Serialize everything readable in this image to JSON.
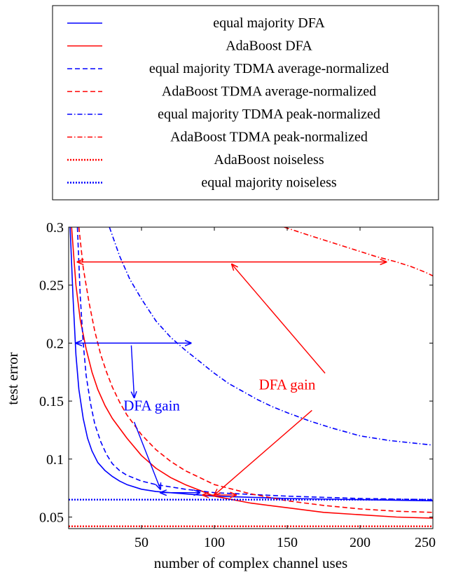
{
  "chart_data": {
    "type": "line",
    "title": "",
    "xlabel": "number of complex channel uses",
    "ylabel": "test error",
    "xlim": [
      0,
      250
    ],
    "ylim": [
      0.04,
      0.3
    ],
    "xticks": [
      50,
      100,
      150,
      200,
      250
    ],
    "yticks": [
      0.05,
      0.1,
      0.15,
      0.2,
      0.25,
      0.3
    ],
    "xtick_labels": [
      "50",
      "100",
      "150",
      "200",
      "250"
    ],
    "ytick_labels": [
      "0.05",
      "0.1",
      "0.15",
      "0.2",
      "0.25",
      "0.3"
    ],
    "grid": false,
    "legend_position": "above plot",
    "series": [
      {
        "name": "equal majority DFA",
        "color": "#0000ff",
        "style": "solid",
        "points": [
          [
            1,
            0.3
          ],
          [
            3,
            0.24
          ],
          [
            5,
            0.19
          ],
          [
            7,
            0.16
          ],
          [
            10,
            0.135
          ],
          [
            13,
            0.118
          ],
          [
            16,
            0.107
          ],
          [
            20,
            0.097
          ],
          [
            25,
            0.09
          ],
          [
            30,
            0.085
          ],
          [
            35,
            0.081
          ],
          [
            40,
            0.078
          ],
          [
            50,
            0.074
          ],
          [
            60,
            0.072
          ],
          [
            80,
            0.07
          ],
          [
            100,
            0.068
          ],
          [
            150,
            0.066
          ],
          [
            200,
            0.065
          ],
          [
            250,
            0.064
          ]
        ]
      },
      {
        "name": "AdaBoost DFA",
        "color": "#ff0000",
        "style": "solid",
        "points": [
          [
            2,
            0.3
          ],
          [
            5,
            0.25
          ],
          [
            8,
            0.22
          ],
          [
            12,
            0.195
          ],
          [
            16,
            0.175
          ],
          [
            20,
            0.16
          ],
          [
            25,
            0.146
          ],
          [
            30,
            0.135
          ],
          [
            40,
            0.118
          ],
          [
            50,
            0.103
          ],
          [
            60,
            0.092
          ],
          [
            70,
            0.084
          ],
          [
            80,
            0.078
          ],
          [
            90,
            0.073
          ],
          [
            100,
            0.068
          ],
          [
            125,
            0.062
          ],
          [
            150,
            0.058
          ],
          [
            175,
            0.054
          ],
          [
            200,
            0.052
          ],
          [
            225,
            0.05
          ],
          [
            250,
            0.049
          ]
        ]
      },
      {
        "name": "equal majority TDMA average-normalized",
        "color": "#0000ff",
        "style": "dashed",
        "points": [
          [
            6,
            0.3
          ],
          [
            8,
            0.24
          ],
          [
            10,
            0.2
          ],
          [
            12,
            0.172
          ],
          [
            15,
            0.148
          ],
          [
            18,
            0.13
          ],
          [
            22,
            0.115
          ],
          [
            26,
            0.104
          ],
          [
            30,
            0.096
          ],
          [
            35,
            0.09
          ],
          [
            40,
            0.086
          ],
          [
            50,
            0.081
          ],
          [
            60,
            0.078
          ],
          [
            80,
            0.074
          ],
          [
            100,
            0.071
          ],
          [
            150,
            0.068
          ],
          [
            200,
            0.066
          ],
          [
            250,
            0.065
          ]
        ]
      },
      {
        "name": "AdaBoost TDMA average-normalized",
        "color": "#ff0000",
        "style": "dashed",
        "points": [
          [
            7,
            0.3
          ],
          [
            10,
            0.265
          ],
          [
            14,
            0.235
          ],
          [
            18,
            0.21
          ],
          [
            22,
            0.19
          ],
          [
            26,
            0.175
          ],
          [
            30,
            0.162
          ],
          [
            35,
            0.149
          ],
          [
            40,
            0.138
          ],
          [
            50,
            0.121
          ],
          [
            60,
            0.108
          ],
          [
            70,
            0.098
          ],
          [
            80,
            0.09
          ],
          [
            90,
            0.084
          ],
          [
            100,
            0.078
          ],
          [
            125,
            0.07
          ],
          [
            150,
            0.064
          ],
          [
            175,
            0.06
          ],
          [
            200,
            0.057
          ],
          [
            225,
            0.055
          ],
          [
            250,
            0.054
          ]
        ]
      },
      {
        "name": "equal majority TDMA peak-normalized",
        "color": "#0000ff",
        "style": "dashdot",
        "points": [
          [
            28,
            0.3
          ],
          [
            35,
            0.275
          ],
          [
            42,
            0.255
          ],
          [
            50,
            0.238
          ],
          [
            60,
            0.219
          ],
          [
            70,
            0.205
          ],
          [
            80,
            0.194
          ],
          [
            90,
            0.184
          ],
          [
            100,
            0.174
          ],
          [
            110,
            0.165
          ],
          [
            120,
            0.158
          ],
          [
            130,
            0.151
          ],
          [
            140,
            0.145
          ],
          [
            150,
            0.14
          ],
          [
            165,
            0.133
          ],
          [
            180,
            0.127
          ],
          [
            200,
            0.12
          ],
          [
            220,
            0.116
          ],
          [
            235,
            0.114
          ],
          [
            250,
            0.112
          ]
        ]
      },
      {
        "name": "AdaBoost TDMA peak-normalized",
        "color": "#ff0000",
        "style": "dashdot",
        "points": [
          [
            148,
            0.3
          ],
          [
            165,
            0.293
          ],
          [
            180,
            0.287
          ],
          [
            195,
            0.281
          ],
          [
            210,
            0.275
          ],
          [
            225,
            0.27
          ],
          [
            235,
            0.266
          ],
          [
            245,
            0.261
          ],
          [
            250,
            0.258
          ]
        ]
      },
      {
        "name": "AdaBoost noiseless",
        "color": "#ff0000",
        "style": "dotted",
        "points": [
          [
            0,
            0.042
          ],
          [
            250,
            0.042
          ]
        ]
      },
      {
        "name": "equal majority noiseless",
        "color": "#0000ff",
        "style": "dotted",
        "points": [
          [
            0,
            0.065
          ],
          [
            250,
            0.065
          ]
        ]
      }
    ],
    "annotations": [
      {
        "text": "DFA gain",
        "color": "#0000ff",
        "at": [
          57,
          0.142
        ],
        "anchor": "middle",
        "arrows": [
          {
            "kind": "double",
            "from": [
              5,
              0.2
            ],
            "to": [
              84,
              0.2
            ]
          },
          {
            "kind": "double",
            "from": [
              63,
              0.071
            ],
            "to": [
              90,
              0.071
            ]
          },
          {
            "kind": "pointer",
            "from": [
              43,
              0.198
            ],
            "to": [
              45,
              0.153
            ]
          },
          {
            "kind": "pointer",
            "from": [
              45,
              0.132
            ],
            "to": [
              63,
              0.074
            ]
          }
        ]
      },
      {
        "text": "DFA gain",
        "color": "#ff0000",
        "at": [
          150,
          0.16
        ],
        "anchor": "middle",
        "arrows": [
          {
            "kind": "double",
            "from": [
              6,
              0.27
            ],
            "to": [
              218,
              0.27
            ]
          },
          {
            "kind": "double",
            "from": [
              92,
              0.069
            ],
            "to": [
              115,
              0.069
            ]
          },
          {
            "kind": "pointer",
            "from": [
              176,
              0.174
            ],
            "to": [
              112,
              0.268
            ]
          },
          {
            "kind": "pointer",
            "from": [
              167,
              0.142
            ],
            "to": [
              100,
              0.069
            ]
          }
        ]
      }
    ]
  }
}
